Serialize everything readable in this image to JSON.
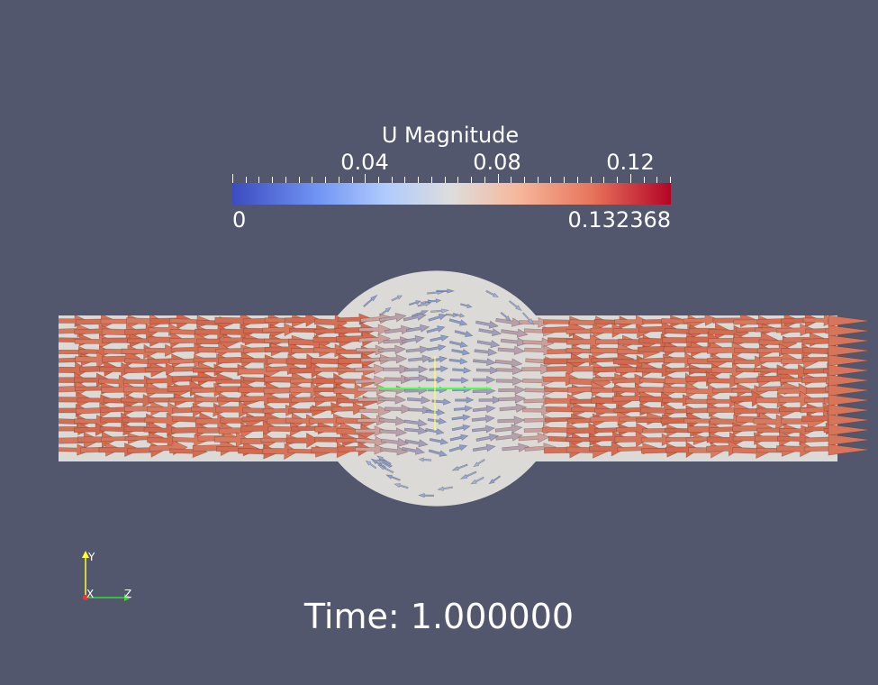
{
  "colorbar": {
    "title": "U Magnitude",
    "tick_labels": [
      "0.04",
      "0.08",
      "0.12"
    ],
    "tick_values": [
      0.04,
      0.08,
      0.12
    ],
    "min_label": "0",
    "max_label": "0.132368",
    "range": [
      0,
      0.132368
    ],
    "colors": [
      "#3b4cc0",
      "#dddddd",
      "#b40426"
    ]
  },
  "time_label": "Time: 1.000000",
  "axes": {
    "y": "Y",
    "x": "X",
    "z": "Z"
  },
  "scene_colors": {
    "background": "#52576e",
    "geometry": "#dcdad6",
    "high_velocity": "#d2674c",
    "low_velocity": "#7f9fd6"
  }
}
